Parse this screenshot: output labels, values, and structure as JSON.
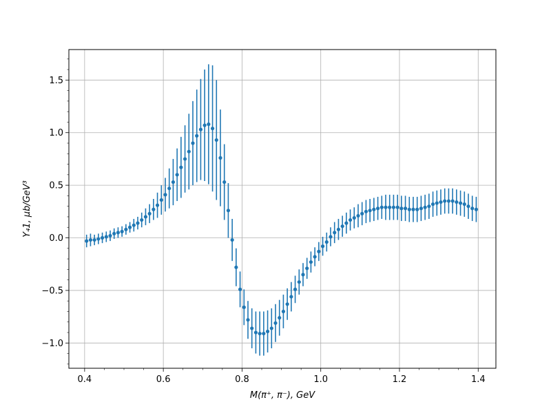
{
  "chart_data": {
    "type": "scatter",
    "xlabel": "M(π⁺, π⁻), GeV",
    "ylabel": "Y₄1, μb/GeV³",
    "xlim": [
      0.36,
      1.445
    ],
    "ylim": [
      -1.24,
      1.79
    ],
    "xticks": [
      "0.4",
      "0.6",
      "0.8",
      "1.0",
      "1.2",
      "1.4"
    ],
    "yticks": [
      "−1.0",
      "−0.5",
      "0.0",
      "0.5",
      "1.0",
      "1.5"
    ],
    "grid": true,
    "minor_ticks": true,
    "series": [
      {
        "color": "#1f77b4",
        "marker": "circle",
        "error_bars": true,
        "x": [
          0.405,
          0.415,
          0.425,
          0.435,
          0.445,
          0.455,
          0.465,
          0.475,
          0.485,
          0.495,
          0.505,
          0.515,
          0.525,
          0.535,
          0.545,
          0.555,
          0.565,
          0.575,
          0.585,
          0.595,
          0.605,
          0.615,
          0.625,
          0.635,
          0.645,
          0.655,
          0.665,
          0.675,
          0.685,
          0.695,
          0.705,
          0.715,
          0.725,
          0.735,
          0.745,
          0.755,
          0.765,
          0.775,
          0.785,
          0.795,
          0.805,
          0.815,
          0.825,
          0.835,
          0.845,
          0.855,
          0.865,
          0.875,
          0.885,
          0.895,
          0.905,
          0.915,
          0.925,
          0.935,
          0.945,
          0.955,
          0.965,
          0.975,
          0.985,
          0.995,
          1.005,
          1.015,
          1.025,
          1.035,
          1.045,
          1.055,
          1.065,
          1.075,
          1.085,
          1.095,
          1.105,
          1.115,
          1.125,
          1.135,
          1.145,
          1.155,
          1.165,
          1.175,
          1.185,
          1.195,
          1.205,
          1.215,
          1.225,
          1.235,
          1.245,
          1.255,
          1.265,
          1.275,
          1.285,
          1.295,
          1.305,
          1.315,
          1.325,
          1.335,
          1.345,
          1.355,
          1.365,
          1.375,
          1.385,
          1.395
        ],
        "y": [
          -0.03,
          -0.02,
          -0.02,
          -0.01,
          0.0,
          0.01,
          0.02,
          0.04,
          0.05,
          0.06,
          0.08,
          0.1,
          0.12,
          0.14,
          0.17,
          0.2,
          0.23,
          0.27,
          0.31,
          0.36,
          0.41,
          0.47,
          0.53,
          0.6,
          0.67,
          0.75,
          0.82,
          0.9,
          0.97,
          1.03,
          1.07,
          1.08,
          1.04,
          0.93,
          0.76,
          0.53,
          0.26,
          -0.02,
          -0.28,
          -0.49,
          -0.66,
          -0.78,
          -0.86,
          -0.9,
          -0.91,
          -0.91,
          -0.89,
          -0.86,
          -0.81,
          -0.76,
          -0.7,
          -0.63,
          -0.56,
          -0.49,
          -0.42,
          -0.35,
          -0.29,
          -0.23,
          -0.18,
          -0.13,
          -0.08,
          -0.04,
          0.01,
          0.05,
          0.08,
          0.11,
          0.14,
          0.17,
          0.19,
          0.21,
          0.23,
          0.25,
          0.26,
          0.27,
          0.28,
          0.29,
          0.29,
          0.29,
          0.29,
          0.29,
          0.28,
          0.28,
          0.27,
          0.27,
          0.27,
          0.28,
          0.29,
          0.3,
          0.32,
          0.33,
          0.34,
          0.35,
          0.35,
          0.35,
          0.34,
          0.33,
          0.32,
          0.3,
          0.28,
          0.27
        ],
        "yerr": [
          0.06,
          0.06,
          0.05,
          0.05,
          0.05,
          0.05,
          0.05,
          0.05,
          0.05,
          0.05,
          0.05,
          0.05,
          0.06,
          0.06,
          0.07,
          0.08,
          0.09,
          0.1,
          0.12,
          0.14,
          0.16,
          0.19,
          0.22,
          0.25,
          0.29,
          0.32,
          0.36,
          0.4,
          0.44,
          0.48,
          0.53,
          0.57,
          0.6,
          0.57,
          0.46,
          0.36,
          0.26,
          0.2,
          0.18,
          0.17,
          0.17,
          0.18,
          0.19,
          0.2,
          0.21,
          0.21,
          0.2,
          0.19,
          0.18,
          0.17,
          0.16,
          0.15,
          0.14,
          0.13,
          0.12,
          0.11,
          0.1,
          0.1,
          0.09,
          0.09,
          0.09,
          0.09,
          0.09,
          0.1,
          0.1,
          0.1,
          0.1,
          0.1,
          0.1,
          0.11,
          0.11,
          0.11,
          0.11,
          0.11,
          0.11,
          0.11,
          0.12,
          0.12,
          0.12,
          0.12,
          0.12,
          0.12,
          0.12,
          0.12,
          0.12,
          0.12,
          0.12,
          0.12,
          0.12,
          0.12,
          0.12,
          0.12,
          0.12,
          0.12,
          0.12,
          0.12,
          0.12,
          0.12,
          0.12,
          0.12
        ]
      }
    ]
  }
}
